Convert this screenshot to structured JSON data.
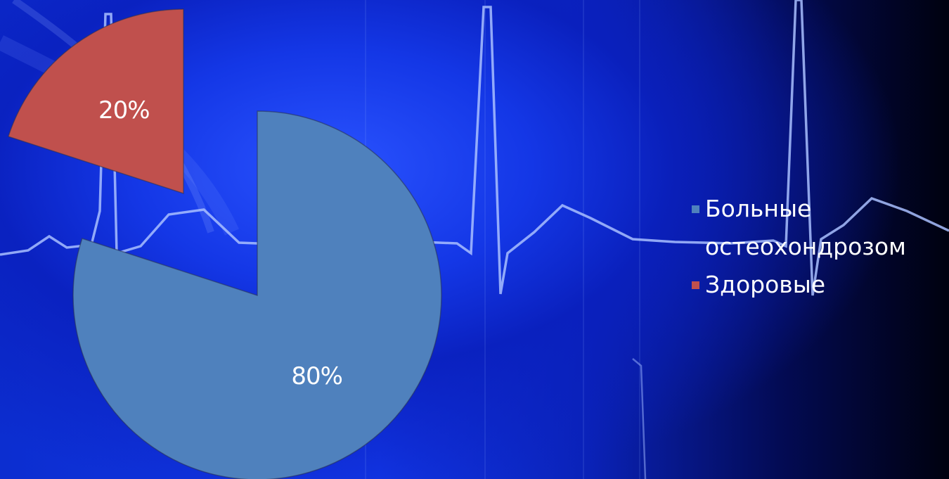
{
  "chart_data": {
    "type": "pie",
    "exploded": true,
    "slices": [
      {
        "name": "Больные остеохондрозом",
        "value": 80,
        "label": "80%",
        "color": "#4f81bd"
      },
      {
        "name": "Здоровые",
        "value": 20,
        "label": "20%",
        "color": "#c0504d"
      }
    ],
    "legend_position": "right",
    "legend": [
      {
        "text": "Больные\nостеохондрозом",
        "color": "#4f81bd"
      },
      {
        "text": "Здоровые",
        "color": "#c0504d"
      }
    ]
  },
  "background": {
    "theme": "blue-ecg-waveform",
    "colors": {
      "primary": "#1437e6",
      "dark": "#00010f",
      "line": "#9fb8ff"
    }
  }
}
